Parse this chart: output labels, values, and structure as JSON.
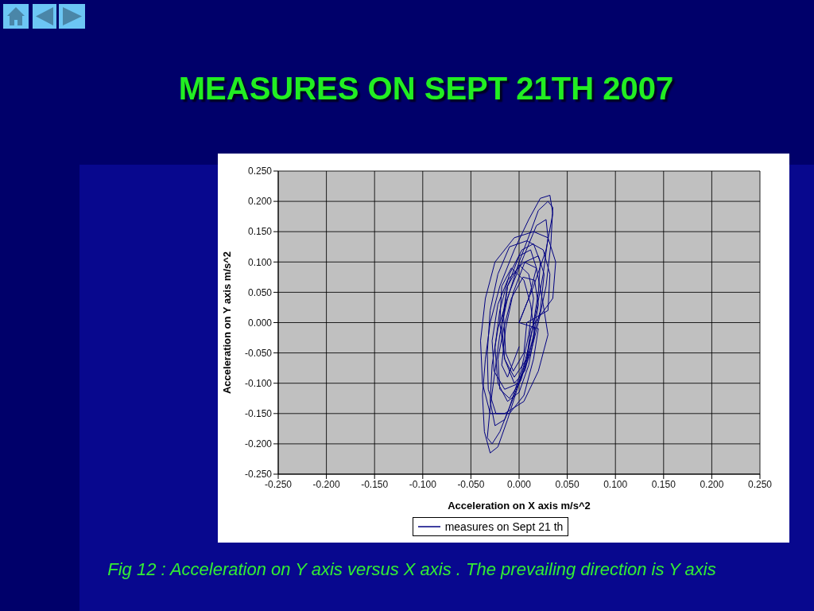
{
  "chart_data": {
    "type": "line",
    "title": "MEASURES ON SEPT 21TH 2007",
    "xlabel": "Acceleration on X axis m/s^2",
    "ylabel": "Acceleration on Y axis m/s^2",
    "annotations": [
      "Fig 12 : Acceleration on Y axis versus X axis . The prevailing direction is Y axis"
    ],
    "series": [
      {
        "name": "measures on Sept 21 th",
        "color": "#000080",
        "x": [
          0.0,
          0.015,
          0.028,
          0.035,
          0.032,
          0.022,
          0.01,
          -0.005,
          -0.02,
          -0.03,
          -0.035,
          -0.038,
          -0.036,
          -0.03,
          -0.022,
          -0.012,
          0.0,
          0.01,
          0.018,
          0.025,
          0.03,
          0.028,
          0.018,
          0.005,
          -0.01,
          -0.022,
          -0.028,
          -0.03,
          -0.025,
          -0.015,
          -0.005,
          0.008,
          0.015,
          0.02,
          0.022,
          0.015,
          0.003,
          -0.01,
          -0.02,
          -0.025,
          -0.022,
          -0.012,
          0.0,
          0.01,
          0.016,
          0.012,
          0.005,
          -0.008,
          -0.018,
          -0.02,
          -0.015,
          -0.005,
          0.008,
          0.012,
          0.035,
          0.038,
          0.03,
          0.015,
          -0.005,
          -0.025,
          -0.035,
          -0.04,
          -0.038,
          -0.03,
          -0.015,
          0.005,
          0.02,
          0.03,
          0.025,
          0.018,
          0.005,
          -0.012,
          -0.022,
          -0.028,
          -0.026,
          -0.015,
          0.0,
          0.012,
          0.02,
          0.028,
          0.033,
          0.035,
          0.03,
          0.02,
          0.012,
          0.0,
          -0.012,
          -0.02,
          -0.025,
          -0.03,
          -0.033,
          -0.028,
          -0.02,
          -0.01,
          0.002,
          0.01,
          0.015,
          0.01,
          0.0,
          -0.012,
          -0.016,
          -0.014,
          -0.006,
          0.005,
          0.008,
          0.03,
          0.032,
          0.025,
          0.008,
          -0.01,
          -0.022,
          -0.03,
          -0.033,
          -0.032,
          -0.024,
          -0.01,
          0.005,
          0.015,
          0.02,
          0.0,
          0.01,
          0.018,
          0.012,
          0.0,
          -0.012,
          -0.018,
          -0.015,
          -0.005,
          0.006,
          0.014,
          0.02,
          0.016,
          0.004,
          -0.008,
          -0.016,
          -0.022,
          -0.02,
          -0.01,
          0.002,
          0.012,
          0.022,
          0.026,
          0.02,
          0.006,
          -0.006,
          -0.014,
          -0.018,
          -0.012,
          0.0
        ],
        "values": [
          0.0,
          0.06,
          0.12,
          0.18,
          0.21,
          0.205,
          0.17,
          0.12,
          0.06,
          0.0,
          -0.06,
          -0.12,
          -0.18,
          -0.215,
          -0.205,
          -0.16,
          -0.1,
          -0.04,
          0.02,
          0.08,
          0.14,
          0.17,
          0.16,
          0.11,
          0.05,
          -0.01,
          -0.07,
          -0.13,
          -0.17,
          -0.16,
          -0.12,
          -0.06,
          0.0,
          0.05,
          0.1,
          0.13,
          0.12,
          0.08,
          0.02,
          -0.04,
          -0.1,
          -0.13,
          -0.115,
          -0.07,
          -0.02,
          0.03,
          0.07,
          0.09,
          0.06,
          0.0,
          -0.06,
          -0.09,
          -0.06,
          -0.01,
          0.04,
          0.1,
          0.14,
          0.15,
          0.14,
          0.1,
          0.04,
          -0.03,
          -0.1,
          -0.15,
          -0.15,
          -0.13,
          -0.08,
          -0.02,
          0.03,
          0.09,
          0.1,
          0.07,
          0.03,
          -0.03,
          -0.08,
          -0.11,
          -0.1,
          -0.05,
          0.0,
          0.06,
          0.13,
          0.19,
          0.2,
          0.185,
          0.15,
          0.1,
          0.04,
          -0.02,
          -0.08,
          -0.14,
          -0.19,
          -0.2,
          -0.18,
          -0.14,
          -0.08,
          -0.02,
          0.04,
          0.08,
          0.095,
          0.06,
          0.01,
          -0.05,
          -0.08,
          -0.05,
          0.0,
          0.02,
          0.08,
          0.12,
          0.135,
          0.125,
          0.08,
          0.02,
          -0.05,
          -0.11,
          -0.15,
          -0.15,
          -0.12,
          -0.06,
          -0.01,
          0.0,
          0.04,
          0.09,
          0.12,
          0.11,
          0.06,
          0.0,
          -0.06,
          -0.1,
          -0.08,
          -0.03,
          0.03,
          0.07,
          0.075,
          0.04,
          -0.01,
          -0.06,
          -0.11,
          -0.125,
          -0.095,
          -0.04,
          0.02,
          0.08,
          0.11,
          0.1,
          0.05,
          -0.01,
          -0.07,
          -0.09,
          -0.04
        ]
      }
    ],
    "xlim": [
      -0.25,
      0.25
    ],
    "xticks": [
      {
        "value": -0.25,
        "label": "-0.250"
      },
      {
        "value": -0.2,
        "label": "-0.200"
      },
      {
        "value": -0.15,
        "label": "-0.150"
      },
      {
        "value": -0.1,
        "label": "-0.100"
      },
      {
        "value": -0.05,
        "label": "-0.050"
      },
      {
        "value": 0,
        "label": "0.000"
      },
      {
        "value": 0.05,
        "label": "0.050"
      },
      {
        "value": 0.1,
        "label": "0.100"
      },
      {
        "value": 0.15,
        "label": "0.150"
      },
      {
        "value": 0.2,
        "label": "0.200"
      },
      {
        "value": 0.25,
        "label": "0.250"
      }
    ],
    "ylim": [
      -0.25,
      0.25
    ],
    "yticks": [
      {
        "value": -0.25,
        "label": "-0.250"
      },
      {
        "value": -0.2,
        "label": "-0.200"
      },
      {
        "value": -0.15,
        "label": "-0.150"
      },
      {
        "value": -0.1,
        "label": "-0.100"
      },
      {
        "value": -0.05,
        "label": "-0.050"
      },
      {
        "value": 0,
        "label": "0.000"
      },
      {
        "value": 0.05,
        "label": "0.050"
      },
      {
        "value": 0.1,
        "label": "0.100"
      },
      {
        "value": 0.15,
        "label": "0.150"
      },
      {
        "value": 0.2,
        "label": "0.200"
      },
      {
        "value": 0.25,
        "label": "0.250"
      }
    ],
    "grid": true,
    "legend": "bottom",
    "marker": "none",
    "line_style": "solid"
  }
}
